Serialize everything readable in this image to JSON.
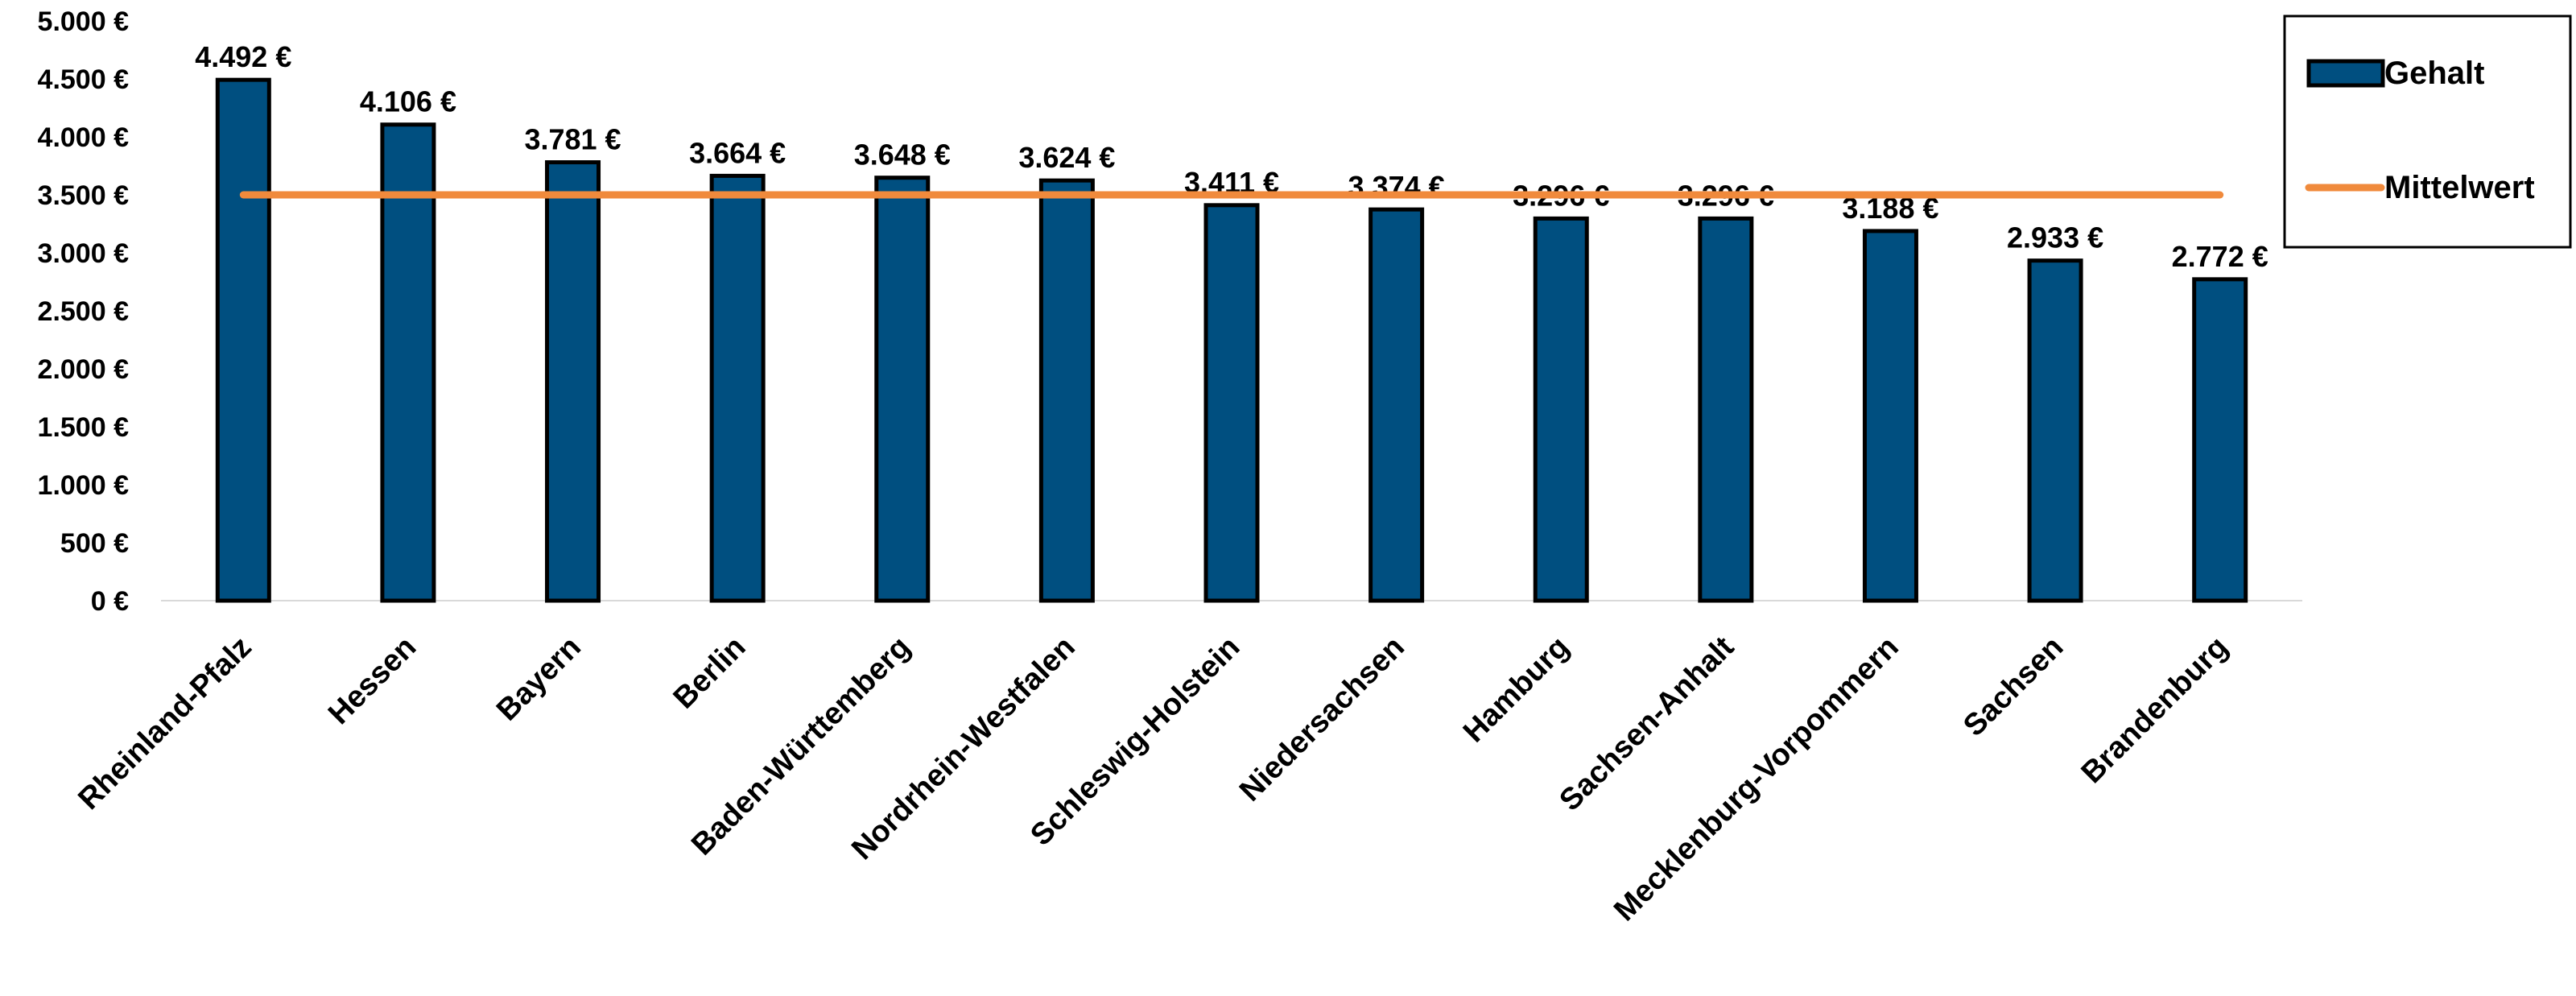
{
  "chart_data": {
    "type": "bar",
    "categories": [
      "Rheinland-Pfalz",
      "Hessen",
      "Bayern",
      "Berlin",
      "Baden-Württemberg",
      "Nordrhein-Westfalen",
      "Schleswig-Holstein",
      "Niedersachsen",
      "Hamburg",
      "Sachsen-Anhalt",
      "Mecklenburg-Vorpommern",
      "Sachsen",
      "Brandenburg"
    ],
    "series": [
      {
        "name": "Gehalt",
        "type": "bar",
        "color": "#004f80",
        "values": [
          4492,
          4106,
          3781,
          3664,
          3648,
          3624,
          3411,
          3374,
          3296,
          3296,
          3188,
          2933,
          2772
        ],
        "labels": [
          "4.492 €",
          "4.106 €",
          "3.781 €",
          "3.664 €",
          "3.648 €",
          "3.624 €",
          "3.411 €",
          "3.374 €",
          "3.296 €",
          "3.296 €",
          "3.188 €",
          "2.933 €",
          "2.772 €"
        ]
      },
      {
        "name": "Mittelwert",
        "type": "line",
        "color": "#f08a3c",
        "value": 3500
      }
    ],
    "ylim": [
      0,
      5000
    ],
    "yticks": [
      0,
      500,
      1000,
      1500,
      2000,
      2500,
      3000,
      3500,
      4000,
      4500,
      5000
    ],
    "ytick_labels": [
      "0 €",
      "500 €",
      "1.000 €",
      "1.500 €",
      "2.000 €",
      "2.500 €",
      "3.000 €",
      "3.500 €",
      "4.000 €",
      "4.500 €",
      "5.000 €"
    ],
    "title": "",
    "xlabel": "",
    "ylabel": "",
    "legend_position": "top-right",
    "grid": false
  }
}
